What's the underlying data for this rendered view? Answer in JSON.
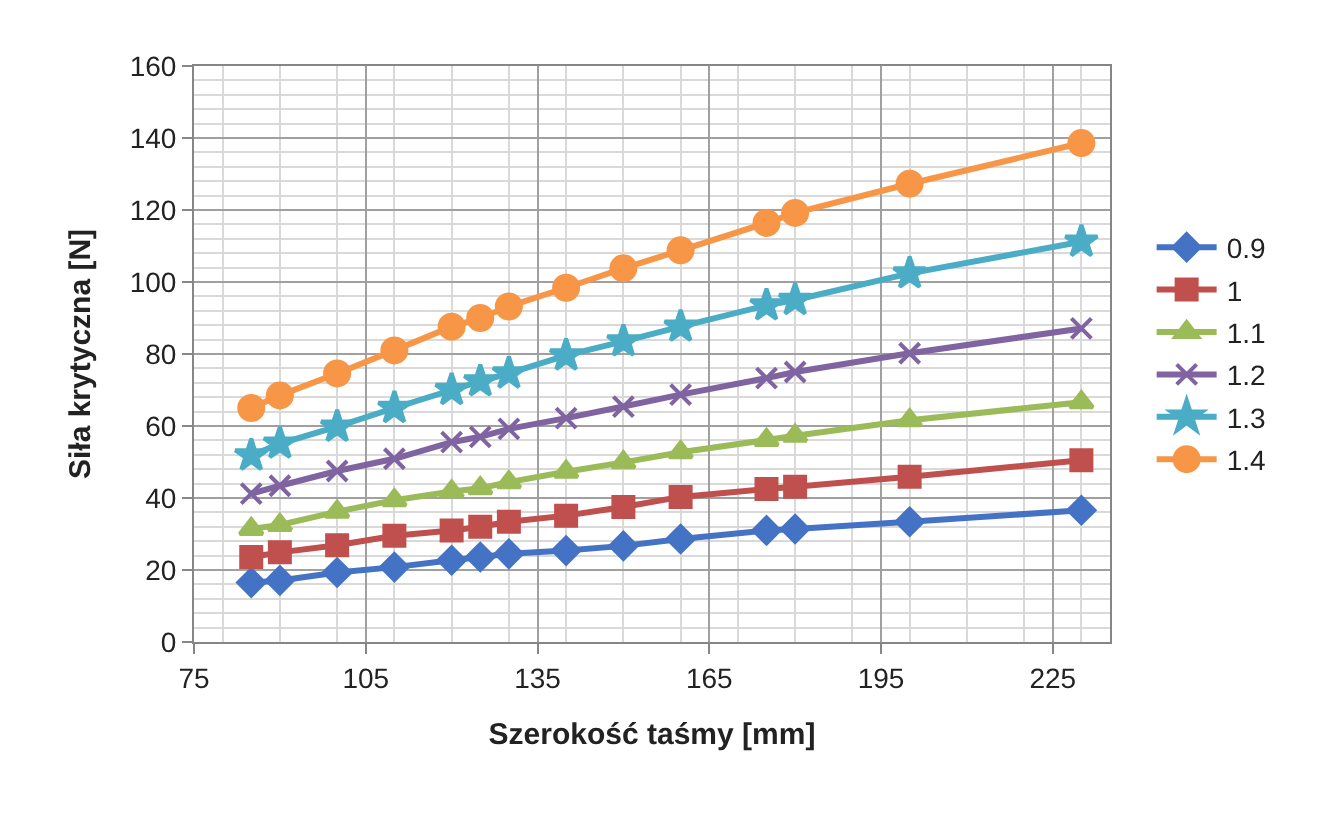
{
  "chart_data": {
    "type": "line",
    "xlabel": "Szerokość taśmy [mm]",
    "ylabel": "Siła krytyczna [N]",
    "x": [
      85,
      90,
      100,
      110,
      120,
      125,
      130,
      140,
      150,
      160,
      175,
      180,
      200,
      230
    ],
    "xlim": [
      75,
      235
    ],
    "xticks": [
      75,
      105,
      135,
      165,
      195,
      225
    ],
    "ylim": [
      0,
      160
    ],
    "yticks": [
      0,
      20,
      40,
      60,
      80,
      100,
      120,
      140,
      160
    ],
    "grid": true,
    "legend": "right",
    "line_style": "solid",
    "series": [
      {
        "name": "0.9",
        "color": "#4472c4",
        "marker": "diamond",
        "values": [
          16.5,
          17.1,
          19.3,
          20.8,
          22.7,
          23.6,
          24.5,
          25.4,
          26.7,
          28.6,
          31,
          31.4,
          33.4,
          36.6
        ]
      },
      {
        "name": "1",
        "color": "#c0504d",
        "marker": "square",
        "values": [
          23.6,
          24.9,
          26.9,
          29.5,
          31,
          32,
          33.4,
          35.1,
          37.5,
          40.3,
          42.5,
          43.1,
          45.9,
          50.5
        ]
      },
      {
        "name": "1.1",
        "color": "#9bbb59",
        "marker": "triangle",
        "values": [
          31.4,
          32.5,
          36.2,
          39.4,
          41.8,
          42.7,
          44.4,
          47.3,
          49.9,
          52.7,
          56.1,
          57.3,
          61.6,
          66.6
        ]
      },
      {
        "name": "1.2",
        "color": "#8064a2",
        "marker": "cross",
        "values": [
          41.2,
          43.4,
          47.5,
          50.9,
          55.5,
          57,
          59.2,
          62.2,
          65.4,
          68.7,
          73.3,
          75,
          80.2,
          87.1
        ]
      },
      {
        "name": "1.3",
        "color": "#4bacc6",
        "marker": "star",
        "values": [
          51.8,
          55.1,
          59.8,
          65,
          70,
          72.4,
          74.6,
          79.6,
          83.5,
          87.6,
          93.5,
          95,
          102.4,
          111.2
        ]
      },
      {
        "name": "1.4",
        "color": "#f79646",
        "marker": "circle",
        "values": [
          65,
          68.5,
          74.6,
          81,
          87.6,
          90,
          93.2,
          98.4,
          103.8,
          108.8,
          116.4,
          119.2,
          127.3,
          138.6
        ]
      }
    ]
  }
}
